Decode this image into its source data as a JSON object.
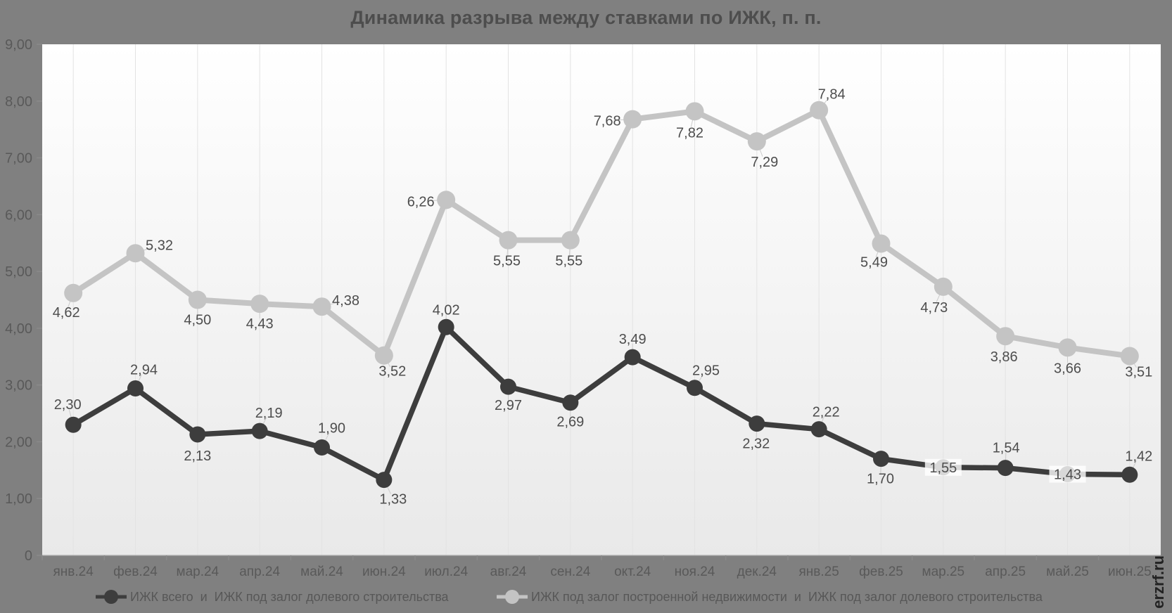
{
  "window": {
    "background": "#808080"
  },
  "watermark": "© erzrf.ru",
  "legend": {
    "items": [
      {
        "label": "ИЖК всего  и  ИЖК под залог долевого строительства",
        "color": "#3d3d3d"
      },
      {
        "label": "ИЖК под залог построенной недвижимости  и  ИЖК под залог долевого строительства",
        "color": "#c4c4c4"
      }
    ]
  },
  "chart_data": {
    "type": "line",
    "title": "Динамика разрыва между ставками по ИЖК, п. п.",
    "categories": [
      "янв.24",
      "фев.24",
      "мар.24",
      "апр.24",
      "май.24",
      "июн.24",
      "июл.24",
      "авг.24",
      "сен.24",
      "окт.24",
      "ноя.24",
      "дек.24",
      "янв.25",
      "фев.25",
      "мар.25",
      "апр.25",
      "май.25",
      "июн.25"
    ],
    "series": [
      {
        "name": "ИЖК всего и ИЖК под залог долевого строительства",
        "color": "#3d3d3d",
        "line_width": 7.5,
        "marker_radius": 11.5,
        "values": [
          2.3,
          2.94,
          2.13,
          2.19,
          1.9,
          1.33,
          4.02,
          2.97,
          2.69,
          3.49,
          2.95,
          2.32,
          2.22,
          1.7,
          1.55,
          1.54,
          1.43,
          1.42
        ],
        "labels": [
          "2,30",
          "2,94",
          "2,13",
          "2,19",
          "1,90",
          "1,33",
          "4,02",
          "2,97",
          "2,69",
          "3,49",
          "2,95",
          "2,32",
          "2,22",
          "1,70",
          "1,55",
          "1,54",
          "1,43",
          "1,42"
        ],
        "label_offsets": [
          [
            -8,
            -29
          ],
          [
            12,
            -27
          ],
          [
            0,
            30
          ],
          [
            13,
            -26
          ],
          [
            14,
            -28
          ],
          [
            13,
            27
          ],
          [
            0,
            -25
          ],
          [
            0,
            26
          ],
          [
            0,
            27
          ],
          [
            0,
            -26
          ],
          [
            16,
            -25
          ],
          [
            -1,
            28
          ],
          [
            10,
            -25
          ],
          [
            -1,
            28
          ],
          [
            0,
            0
          ],
          [
            1,
            -29
          ],
          [
            0,
            0
          ],
          [
            13,
            -27
          ]
        ],
        "label_bg_indices": [
          14,
          16
        ]
      },
      {
        "name": "ИЖК под залог построенной недвижимости и ИЖК под залог долевого строительства",
        "color": "#c4c4c4",
        "line_width": 8,
        "marker_radius": 13,
        "values": [
          4.62,
          5.32,
          4.5,
          4.43,
          4.38,
          3.52,
          6.26,
          5.55,
          5.55,
          7.68,
          7.82,
          7.29,
          7.84,
          5.49,
          4.73,
          3.86,
          3.66,
          3.51
        ],
        "labels": [
          "4,62",
          "5,32",
          "4,50",
          "4,43",
          "4,38",
          "3,52",
          "6,26",
          "5,55",
          "5,55",
          "7,68",
          "7,82",
          "7,29",
          "7,84",
          "5,49",
          "4,73",
          "3,86",
          "3,66",
          "3,51"
        ],
        "label_offsets": [
          [
            -10,
            27
          ],
          [
            34,
            -12
          ],
          [
            0,
            28
          ],
          [
            0,
            28
          ],
          [
            34,
            -9
          ],
          [
            12,
            22
          ],
          [
            -36,
            2
          ],
          [
            -2,
            29
          ],
          [
            -2,
            29
          ],
          [
            -36,
            2
          ],
          [
            -7,
            30
          ],
          [
            11,
            29
          ],
          [
            18,
            -23
          ],
          [
            -10,
            26
          ],
          [
            -13,
            29
          ],
          [
            -2,
            29
          ],
          [
            0,
            29
          ],
          [
            13,
            22
          ]
        ],
        "label_bg_indices": []
      }
    ],
    "ylim": [
      0,
      9
    ],
    "y_ticks": [
      {
        "value": 9,
        "label": "9,00"
      },
      {
        "value": 8,
        "label": "8,00"
      },
      {
        "value": 7,
        "label": "7,00"
      },
      {
        "value": 6,
        "label": "6,00"
      },
      {
        "value": 5,
        "label": "5,00"
      },
      {
        "value": 4,
        "label": "4,00"
      },
      {
        "value": 3,
        "label": "3,00"
      },
      {
        "value": 2,
        "label": "2,00"
      },
      {
        "value": 1,
        "label": "1,00"
      },
      {
        "value": 0,
        "label": "0"
      }
    ],
    "grid": "vertical-only",
    "legend_position": "bottom",
    "colors": {
      "plot_bg_top": "#ffffff",
      "plot_bg_bottom": "#e9e9e9",
      "gridline": "#e3e3e3",
      "axis_line": "#b0b0b0",
      "tick": "#8a8a8a",
      "axis_label": "#595959",
      "data_label": "#4d4d4d",
      "leader_line": "#cccccc"
    }
  }
}
